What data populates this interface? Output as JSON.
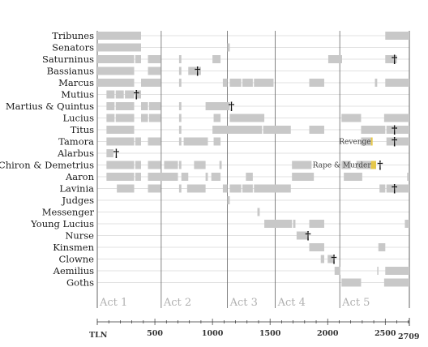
{
  "chart_data": {
    "type": "timeline",
    "xlabel": "TLN",
    "xlim": [
      0,
      2709
    ],
    "xticks": [
      500,
      1000,
      1500,
      2000,
      2500
    ],
    "xmax_label": "2709",
    "colors": {
      "speaking": "#c8c8c8",
      "present": "#e2e2e2",
      "highlight": "#e6c84a",
      "line": "#999999",
      "act_line": "#666666"
    },
    "acts": [
      {
        "label": "Act 1",
        "start": 0
      },
      {
        "label": "Act 2",
        "start": 555
      },
      {
        "label": "Act 3",
        "start": 1130
      },
      {
        "label": "Act 4",
        "start": 1545
      },
      {
        "label": "Act 5",
        "start": 2105
      }
    ],
    "annotations": [
      {
        "text": "Revenge",
        "x": 2235,
        "end": 2390,
        "row": 9
      },
      {
        "text": "Rape & Murder",
        "x": 2235,
        "end": 2420,
        "row": 11
      }
    ],
    "characters": [
      {
        "name": "Tribunes",
        "segments": [
          [
            0,
            380
          ],
          [
            2500,
            2709
          ]
        ],
        "death": null
      },
      {
        "name": "Senators",
        "segments": [
          [
            0,
            380
          ],
          [
            1130,
            1150
          ]
        ],
        "death": null
      },
      {
        "name": "Saturninus",
        "segments": [
          [
            0,
            320
          ],
          [
            330,
            380
          ],
          [
            440,
            550
          ],
          [
            710,
            730
          ],
          [
            1000,
            1070
          ],
          [
            2005,
            2125
          ],
          [
            2500,
            2600
          ]
        ],
        "death": 2580
      },
      {
        "name": "Bassianus",
        "segments": [
          [
            0,
            320
          ],
          [
            440,
            550
          ],
          [
            710,
            730
          ],
          [
            790,
            900
          ]
        ],
        "death": 870
      },
      {
        "name": "Marcus",
        "segments": [
          [
            0,
            320
          ],
          [
            380,
            550
          ],
          [
            710,
            730
          ],
          [
            1090,
            1130
          ],
          [
            1150,
            1250
          ],
          [
            1260,
            1350
          ],
          [
            1360,
            1530
          ],
          [
            1840,
            1970
          ],
          [
            2410,
            2430
          ],
          [
            2500,
            2709
          ]
        ],
        "death": null
      },
      {
        "name": "Mutius",
        "segments": [
          [
            80,
            150
          ],
          [
            160,
            230
          ],
          [
            240,
            320
          ],
          [
            330,
            380
          ]
        ],
        "death": 340
      },
      {
        "name": "Martius & Quintus",
        "segments": [
          [
            80,
            150
          ],
          [
            160,
            320
          ],
          [
            380,
            440
          ],
          [
            450,
            550
          ],
          [
            710,
            730
          ],
          [
            940,
            1150
          ]
        ],
        "death": 1165
      },
      {
        "name": "Lucius",
        "segments": [
          [
            80,
            150
          ],
          [
            160,
            320
          ],
          [
            380,
            440
          ],
          [
            450,
            550
          ],
          [
            710,
            730
          ],
          [
            1010,
            1070
          ],
          [
            1150,
            1450
          ],
          [
            2120,
            2290
          ],
          [
            2490,
            2709
          ]
        ],
        "death": null
      },
      {
        "name": "Titus",
        "segments": [
          [
            80,
            320
          ],
          [
            710,
            730
          ],
          [
            1000,
            1430
          ],
          [
            1440,
            1680
          ],
          [
            1840,
            1970
          ],
          [
            2290,
            2500
          ],
          [
            2510,
            2709
          ]
        ],
        "death": 2580
      },
      {
        "name": "Tamora",
        "segments": [
          [
            80,
            320
          ],
          [
            330,
            380
          ],
          [
            440,
            550
          ],
          [
            710,
            730
          ],
          [
            750,
            960
          ],
          [
            1010,
            1070
          ],
          [
            2290,
            2380
          ],
          [
            2510,
            2709
          ]
        ],
        "death": 2580
      },
      {
        "name": "Alarbus",
        "segments": [
          [
            80,
            140
          ]
        ],
        "death": 165
      },
      {
        "name": "Chiron & Demetrius",
        "segments": [
          [
            80,
            320
          ],
          [
            330,
            380
          ],
          [
            440,
            550
          ],
          [
            580,
            700
          ],
          [
            710,
            730
          ],
          [
            840,
            940
          ],
          [
            1060,
            1080
          ],
          [
            1690,
            1860
          ],
          [
            2120,
            2200
          ],
          [
            2250,
            2420
          ]
        ],
        "death": 2455
      },
      {
        "name": "Aaron",
        "segments": [
          [
            80,
            320
          ],
          [
            330,
            380
          ],
          [
            440,
            700
          ],
          [
            730,
            790
          ],
          [
            940,
            960
          ],
          [
            990,
            1070
          ],
          [
            1290,
            1350
          ],
          [
            1690,
            1880
          ],
          [
            2140,
            2300
          ],
          [
            2690,
            2709
          ]
        ],
        "death": null
      },
      {
        "name": "Lavinia",
        "segments": [
          [
            170,
            320
          ],
          [
            440,
            550
          ],
          [
            710,
            730
          ],
          [
            780,
            940
          ],
          [
            1090,
            1130
          ],
          [
            1150,
            1250
          ],
          [
            1260,
            1350
          ],
          [
            1360,
            1680
          ],
          [
            2450,
            2500
          ],
          [
            2510,
            2709
          ]
        ],
        "death": 2580
      },
      {
        "name": "Judges",
        "segments": [
          [
            1130,
            1150
          ]
        ],
        "death": null
      },
      {
        "name": "Messenger",
        "segments": [
          [
            1390,
            1410
          ]
        ],
        "death": null
      },
      {
        "name": "Young Lucius",
        "segments": [
          [
            1450,
            1690
          ],
          [
            1700,
            1720
          ],
          [
            1840,
            1970
          ],
          [
            2670,
            2709
          ]
        ],
        "death": null
      },
      {
        "name": "Nurse",
        "segments": [
          [
            1730,
            1830
          ]
        ],
        "death": 1830
      },
      {
        "name": "Kinsmen",
        "segments": [
          [
            1840,
            1970
          ],
          [
            2440,
            2500
          ]
        ],
        "death": null
      },
      {
        "name": "Clowne",
        "segments": [
          [
            1940,
            1970
          ],
          [
            2000,
            2050
          ]
        ],
        "death": 2055
      },
      {
        "name": "Aemilius",
        "segments": [
          [
            2060,
            2110
          ],
          [
            2430,
            2440
          ],
          [
            2500,
            2709
          ]
        ],
        "death": null
      },
      {
        "name": "Goths",
        "segments": [
          [
            2120,
            2290
          ],
          [
            2490,
            2709
          ]
        ],
        "death": null
      }
    ]
  }
}
